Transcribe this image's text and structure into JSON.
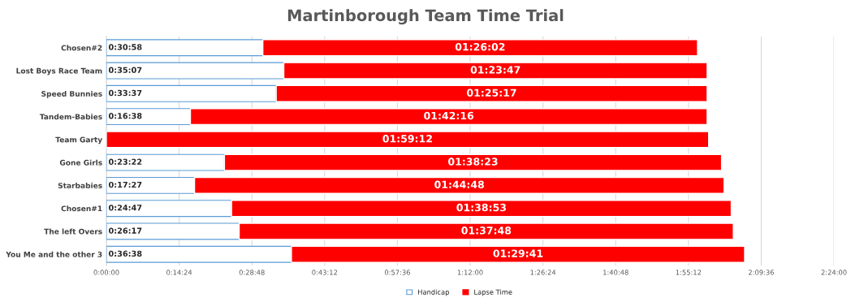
{
  "chart_data": {
    "type": "bar",
    "orientation": "horizontal",
    "stacked": true,
    "title": "Martinborough Team Time Trial",
    "categories": [
      "Chosen#2",
      "Lost Boys Race Team",
      "Speed Bunnies",
      "Tandem-Babies",
      "Team Garty",
      "Gone Girls",
      "Starbabies",
      "Chosen#1",
      "The left Overs",
      "You Me and the other 3"
    ],
    "series": [
      {
        "name": "Handicap",
        "color": "#5b9bd5",
        "values": [
          30.9667,
          35.1167,
          33.6167,
          16.6333,
          0,
          23.3667,
          17.45,
          24.7833,
          26.2833,
          36.6333
        ],
        "value_labels": [
          "0:30:58",
          "0:35:07",
          "0:33:37",
          "0:16:38",
          null,
          "0:23:22",
          "0:17:27",
          "0:24:47",
          "0:26:17",
          "0:36:38"
        ]
      },
      {
        "name": "Lapse Time",
        "color": "#ff0000",
        "values": [
          86.0333,
          83.7833,
          85.2833,
          102.2667,
          119.2,
          98.3833,
          104.8,
          98.8833,
          97.8,
          89.6833
        ],
        "value_labels": [
          "01:26:02",
          "01:23:47",
          "01:25:17",
          "01:42:16",
          "01:59:12",
          "01:38:23",
          "01:44:48",
          "01:38:53",
          "01:37:48",
          "01:29:41"
        ]
      }
    ],
    "xlim": [
      0,
      144
    ],
    "xticks": [
      {
        "value": 0,
        "label": "0:00:00"
      },
      {
        "value": 14.4,
        "label": "0:14:24"
      },
      {
        "value": 28.8,
        "label": "0:28:48"
      },
      {
        "value": 43.2,
        "label": "0:43:12"
      },
      {
        "value": 57.6,
        "label": "0:57:36"
      },
      {
        "value": 72,
        "label": "1:12:00"
      },
      {
        "value": 86.4,
        "label": "1:26:24"
      },
      {
        "value": 100.8,
        "label": "1:40:48"
      },
      {
        "value": 115.2,
        "label": "1:55:12"
      },
      {
        "value": 129.6,
        "label": "2:09:36"
      },
      {
        "value": 144,
        "label": "2:24:00"
      }
    ],
    "grid": "x",
    "legend": "bottom"
  }
}
